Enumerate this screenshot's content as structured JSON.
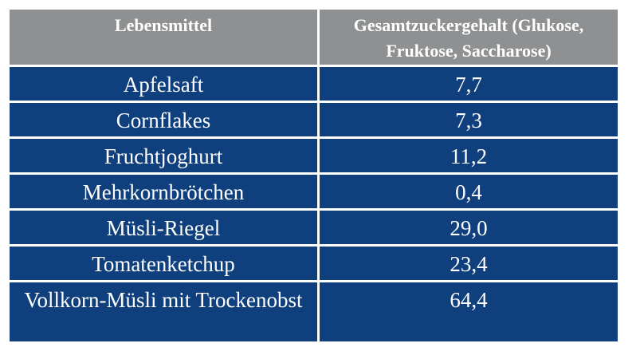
{
  "table": {
    "headers": {
      "food": "Lebensmittel",
      "sugar": "Gesamtzuckergehalt (Glukose, Fruktose, Saccharose)"
    },
    "rows": [
      {
        "food": "Apfelsaft",
        "sugar": "7,7"
      },
      {
        "food": "Cornflakes",
        "sugar": "7,3"
      },
      {
        "food": "Fruchtjoghurt",
        "sugar": "11,2"
      },
      {
        "food": "Mehrkornbrötchen",
        "sugar": "0,4"
      },
      {
        "food": "Müsli-Riegel",
        "sugar": "29,0"
      },
      {
        "food": "Tomatenketchup",
        "sugar": "23,4"
      },
      {
        "food": "Vollkorn-Müsli mit Trockenobst",
        "sugar": "64,4"
      }
    ]
  },
  "colors": {
    "header_bg": "#8e9092",
    "row_bg": "#0f3f7c",
    "text": "#ffffff"
  }
}
